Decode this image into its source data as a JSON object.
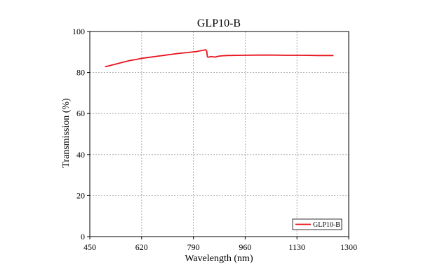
{
  "chart_data": {
    "type": "line",
    "title": "GLP10-B",
    "xlabel": "Wavelength (nm)",
    "ylabel": "Transmission (%)",
    "xlim": [
      450,
      1300
    ],
    "ylim": [
      0,
      100
    ],
    "xticks": [
      450,
      620,
      790,
      960,
      1130,
      1300
    ],
    "yticks": [
      0,
      20,
      40,
      60,
      80,
      100
    ],
    "grid": true,
    "legend_position": "bottom-right",
    "colors": {
      "series": "#e8121b",
      "grid": "#999999",
      "axis": "#000000"
    },
    "series": [
      {
        "name": "GLP10-B",
        "x": [
          500,
          520,
          540,
          560,
          580,
          600,
          620,
          640,
          660,
          680,
          700,
          720,
          740,
          760,
          780,
          800,
          810,
          820,
          830,
          832,
          834,
          836,
          840,
          850,
          860,
          870,
          880,
          900,
          950,
          1000,
          1050,
          1100,
          1150,
          1200,
          1250
        ],
        "y": [
          82.8,
          83.5,
          84.3,
          85.1,
          85.8,
          86.3,
          86.9,
          87.3,
          87.7,
          88.1,
          88.5,
          88.9,
          89.3,
          89.6,
          89.9,
          90.2,
          90.5,
          90.8,
          91.1,
          90.9,
          90.2,
          87.6,
          87.5,
          87.8,
          87.5,
          87.9,
          88.1,
          88.3,
          88.4,
          88.5,
          88.5,
          88.4,
          88.4,
          88.3,
          88.3
        ]
      }
    ]
  }
}
